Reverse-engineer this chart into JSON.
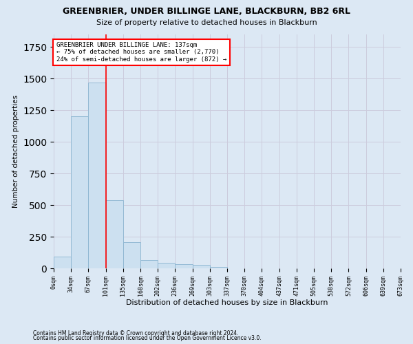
{
  "title": "GREENBRIER, UNDER BILLINGE LANE, BLACKBURN, BB2 6RL",
  "subtitle": "Size of property relative to detached houses in Blackburn",
  "xlabel": "Distribution of detached houses by size in Blackburn",
  "ylabel": "Number of detached properties",
  "bar_values": [
    90,
    1200,
    1470,
    540,
    205,
    65,
    45,
    32,
    25,
    12,
    0,
    0,
    0,
    0,
    0,
    0,
    0,
    0,
    0,
    0
  ],
  "bar_labels": [
    "0sqm",
    "34sqm",
    "67sqm",
    "101sqm",
    "135sqm",
    "168sqm",
    "202sqm",
    "236sqm",
    "269sqm",
    "303sqm",
    "337sqm",
    "370sqm",
    "404sqm",
    "437sqm",
    "471sqm",
    "505sqm",
    "538sqm",
    "572sqm",
    "606sqm",
    "639sqm",
    "673sqm"
  ],
  "bar_color": "#cce0f0",
  "bar_edge_color": "#8ab4d0",
  "grid_color": "#ccccdd",
  "background_color": "#dce8f4",
  "axes_background": "#dce8f4",
  "red_line_x": 3.0,
  "annotation_label": "GREENBRIER UNDER BILLINGE LANE: 137sqm",
  "annotation_line1": "← 75% of detached houses are smaller (2,770)",
  "annotation_line2": "24% of semi-detached houses are larger (872) →",
  "ylim_max": 1850,
  "footnote1": "Contains HM Land Registry data © Crown copyright and database right 2024.",
  "footnote2": "Contains public sector information licensed under the Open Government Licence v3.0."
}
